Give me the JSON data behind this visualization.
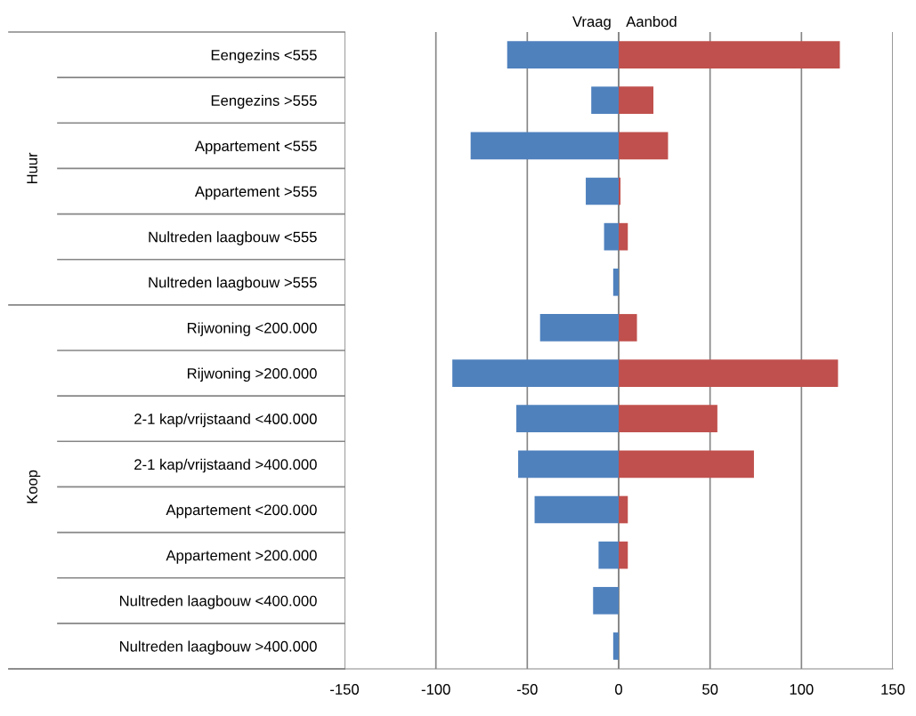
{
  "chart_data": {
    "type": "bar",
    "orientation": "horizontal",
    "categories": [
      "Eengezins <555",
      "Eengezins >555",
      "Appartement <555",
      "Appartement >555",
      "Nultreden laagbouw <555",
      "Nultreden laagbouw >555",
      "Rijwoning <200.000",
      "Rijwoning >200.000",
      "2-1 kap/vrijstaand <400.000",
      "2-1 kap/vrijstaand >400.000",
      "Appartement <200.000",
      "Appartement >200.000",
      "Nultreden laagbouw <400.000",
      "Nultreden laagbouw >400.000"
    ],
    "series": [
      {
        "name": "Vraag",
        "color": "#4f81bd",
        "values": [
          -61,
          -15,
          -81,
          -18,
          -8,
          -3,
          -43,
          -91,
          -56,
          -55,
          -46,
          -11,
          -14,
          -3
        ]
      },
      {
        "name": "Aanbod",
        "color": "#c0504d",
        "values": [
          121,
          19,
          27,
          1,
          5,
          0,
          10,
          120,
          54,
          74,
          5,
          5,
          0,
          0
        ]
      }
    ],
    "xlim": [
      -150,
      150
    ],
    "xticks": [
      -150,
      -100,
      -50,
      0,
      50,
      100,
      150
    ],
    "grid": "x",
    "legend": false,
    "stacked": true,
    "annotations": [
      "Huur",
      "Koop"
    ]
  }
}
